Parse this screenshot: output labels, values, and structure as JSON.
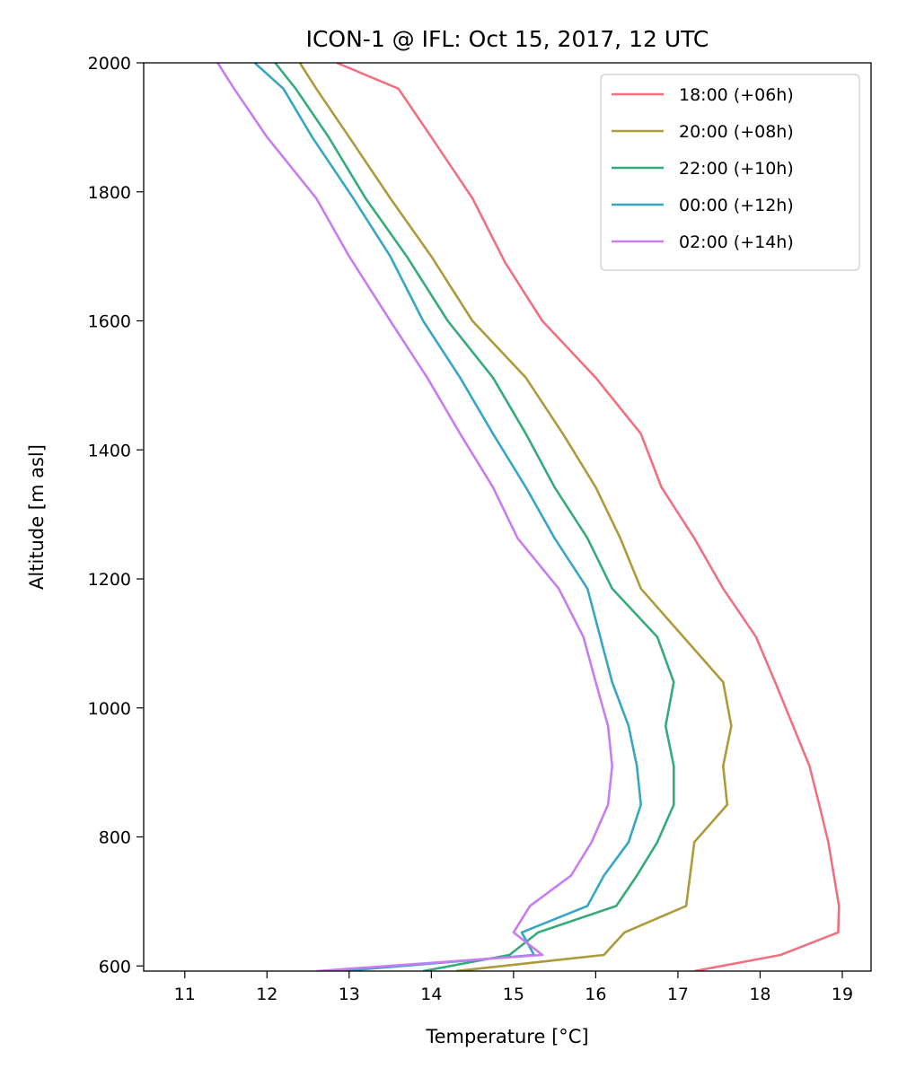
{
  "chart_data": {
    "type": "line",
    "title": "ICON-1 @ IFL: Oct 15, 2017, 12 UTC",
    "xlabel": "Temperature [°C]",
    "ylabel": "Altitude [m asl]",
    "xlim": [
      10.5,
      19.35
    ],
    "ylim": [
      592,
      2000
    ],
    "xticks": [
      11,
      12,
      13,
      14,
      15,
      16,
      17,
      18,
      19
    ],
    "yticks": [
      600,
      800,
      1000,
      1200,
      1400,
      1600,
      1800,
      2000
    ],
    "grid": false,
    "legend_position": "top-right",
    "series": [
      {
        "name": "18:00 (+06h)",
        "color": "#f0707f",
        "points": [
          [
            17.2,
            592
          ],
          [
            18.25,
            617
          ],
          [
            18.95,
            652
          ],
          [
            18.96,
            693
          ],
          [
            18.83,
            792
          ],
          [
            18.72,
            850
          ],
          [
            18.6,
            910
          ],
          [
            18.2,
            1035
          ],
          [
            17.95,
            1110
          ],
          [
            17.55,
            1185
          ],
          [
            17.2,
            1263
          ],
          [
            16.8,
            1342
          ],
          [
            16.55,
            1425
          ],
          [
            16.0,
            1512
          ],
          [
            15.35,
            1600
          ],
          [
            14.9,
            1690
          ],
          [
            14.5,
            1790
          ],
          [
            14.0,
            1885
          ],
          [
            13.6,
            1960
          ],
          [
            12.85,
            2000
          ]
        ]
      },
      {
        "name": "20:00 (+08h)",
        "color": "#ad9a3a",
        "points": [
          [
            14.3,
            592
          ],
          [
            16.1,
            617
          ],
          [
            16.35,
            652
          ],
          [
            17.1,
            693
          ],
          [
            17.2,
            792
          ],
          [
            17.6,
            850
          ],
          [
            17.55,
            910
          ],
          [
            17.65,
            972
          ],
          [
            17.55,
            1040
          ],
          [
            16.55,
            1185
          ],
          [
            16.3,
            1263
          ],
          [
            16.0,
            1342
          ],
          [
            15.6,
            1425
          ],
          [
            15.15,
            1512
          ],
          [
            14.5,
            1600
          ],
          [
            14.0,
            1700
          ],
          [
            13.5,
            1790
          ],
          [
            13.0,
            1885
          ],
          [
            12.6,
            1960
          ],
          [
            12.4,
            2000
          ]
        ]
      },
      {
        "name": "22:00 (+10h)",
        "color": "#35ab7a",
        "points": [
          [
            13.9,
            592
          ],
          [
            14.95,
            617
          ],
          [
            15.3,
            652
          ],
          [
            16.25,
            693
          ],
          [
            16.5,
            740
          ],
          [
            16.75,
            792
          ],
          [
            16.95,
            850
          ],
          [
            16.95,
            910
          ],
          [
            16.85,
            972
          ],
          [
            16.95,
            1040
          ],
          [
            16.75,
            1110
          ],
          [
            16.2,
            1185
          ],
          [
            15.9,
            1263
          ],
          [
            15.5,
            1342
          ],
          [
            15.15,
            1425
          ],
          [
            14.75,
            1512
          ],
          [
            14.2,
            1600
          ],
          [
            13.7,
            1700
          ],
          [
            13.2,
            1790
          ],
          [
            12.75,
            1885
          ],
          [
            12.35,
            1960
          ],
          [
            12.1,
            2000
          ]
        ]
      },
      {
        "name": "00:00 (+12h)",
        "color": "#37a6c5",
        "points": [
          [
            12.9,
            592
          ],
          [
            15.25,
            617
          ],
          [
            15.1,
            652
          ],
          [
            15.9,
            693
          ],
          [
            16.1,
            740
          ],
          [
            16.4,
            792
          ],
          [
            16.55,
            850
          ],
          [
            16.5,
            910
          ],
          [
            16.4,
            972
          ],
          [
            16.2,
            1040
          ],
          [
            15.9,
            1185
          ],
          [
            15.5,
            1263
          ],
          [
            15.15,
            1342
          ],
          [
            14.75,
            1425
          ],
          [
            14.35,
            1512
          ],
          [
            13.9,
            1600
          ],
          [
            13.5,
            1700
          ],
          [
            13.05,
            1790
          ],
          [
            12.55,
            1885
          ],
          [
            12.2,
            1960
          ],
          [
            11.85,
            2000
          ]
        ]
      },
      {
        "name": "02:00 (+14h)",
        "color": "#c77cf2",
        "points": [
          [
            12.6,
            592
          ],
          [
            15.35,
            617
          ],
          [
            15.0,
            652
          ],
          [
            15.2,
            693
          ],
          [
            15.7,
            740
          ],
          [
            15.95,
            792
          ],
          [
            16.15,
            850
          ],
          [
            16.2,
            910
          ],
          [
            16.15,
            972
          ],
          [
            16.0,
            1040
          ],
          [
            15.85,
            1110
          ],
          [
            15.55,
            1185
          ],
          [
            15.05,
            1263
          ],
          [
            14.75,
            1342
          ],
          [
            14.35,
            1425
          ],
          [
            13.95,
            1512
          ],
          [
            13.5,
            1600
          ],
          [
            13.0,
            1700
          ],
          [
            12.6,
            1790
          ],
          [
            12.0,
            1885
          ],
          [
            11.6,
            1960
          ],
          [
            11.4,
            2000
          ]
        ]
      }
    ]
  }
}
